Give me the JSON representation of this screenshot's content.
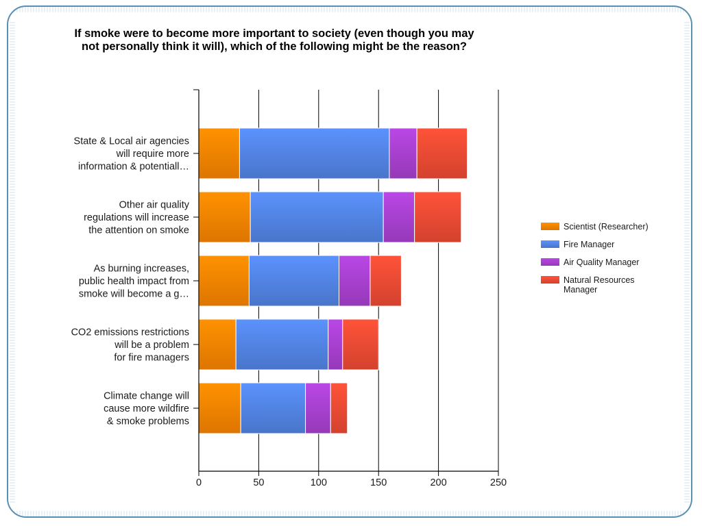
{
  "chart_data": {
    "type": "bar",
    "orientation": "horizontal",
    "stacked": true,
    "title": "If smoke were to become more important to society (even though you may not personally think it will), which of the following might be the reason?",
    "categories": [
      [
        "State & Local air agencies",
        "will require more",
        "information & potentiall…"
      ],
      [
        "Other air quality",
        "regulations will increase",
        "the attention on smoke"
      ],
      [
        "As burning increases,",
        "public health impact from",
        "smoke will become a g…"
      ],
      [
        "CO2 emissions restrictions",
        "will be a problem",
        "for fire managers"
      ],
      [
        "Climate change will",
        "cause more wildfire",
        "& smoke problems"
      ]
    ],
    "series": [
      {
        "name": "Scientist (Researcher)",
        "color": "#f07f00",
        "values": [
          34,
          43,
          42,
          31,
          35
        ]
      },
      {
        "name": "Fire Manager",
        "color": "#4f7fdc",
        "values": [
          125,
          111,
          75,
          77,
          54
        ]
      },
      {
        "name": "Air Quality Manager",
        "color": "#a23ec8",
        "values": [
          23,
          26,
          26,
          12,
          21
        ]
      },
      {
        "name": "Natural Resources Manager",
        "color": "#e54832",
        "values": [
          42,
          39,
          26,
          30,
          14
        ]
      }
    ],
    "xlim": [
      0,
      250
    ],
    "xticks": [
      0,
      50,
      100,
      150,
      200,
      250
    ],
    "grid": true,
    "legend_position": "right",
    "legend_labels": [
      [
        "Scientist (Researcher)"
      ],
      [
        "Fire Manager"
      ],
      [
        "Air Quality Manager"
      ],
      [
        "Natural Resources",
        "Manager"
      ]
    ]
  }
}
